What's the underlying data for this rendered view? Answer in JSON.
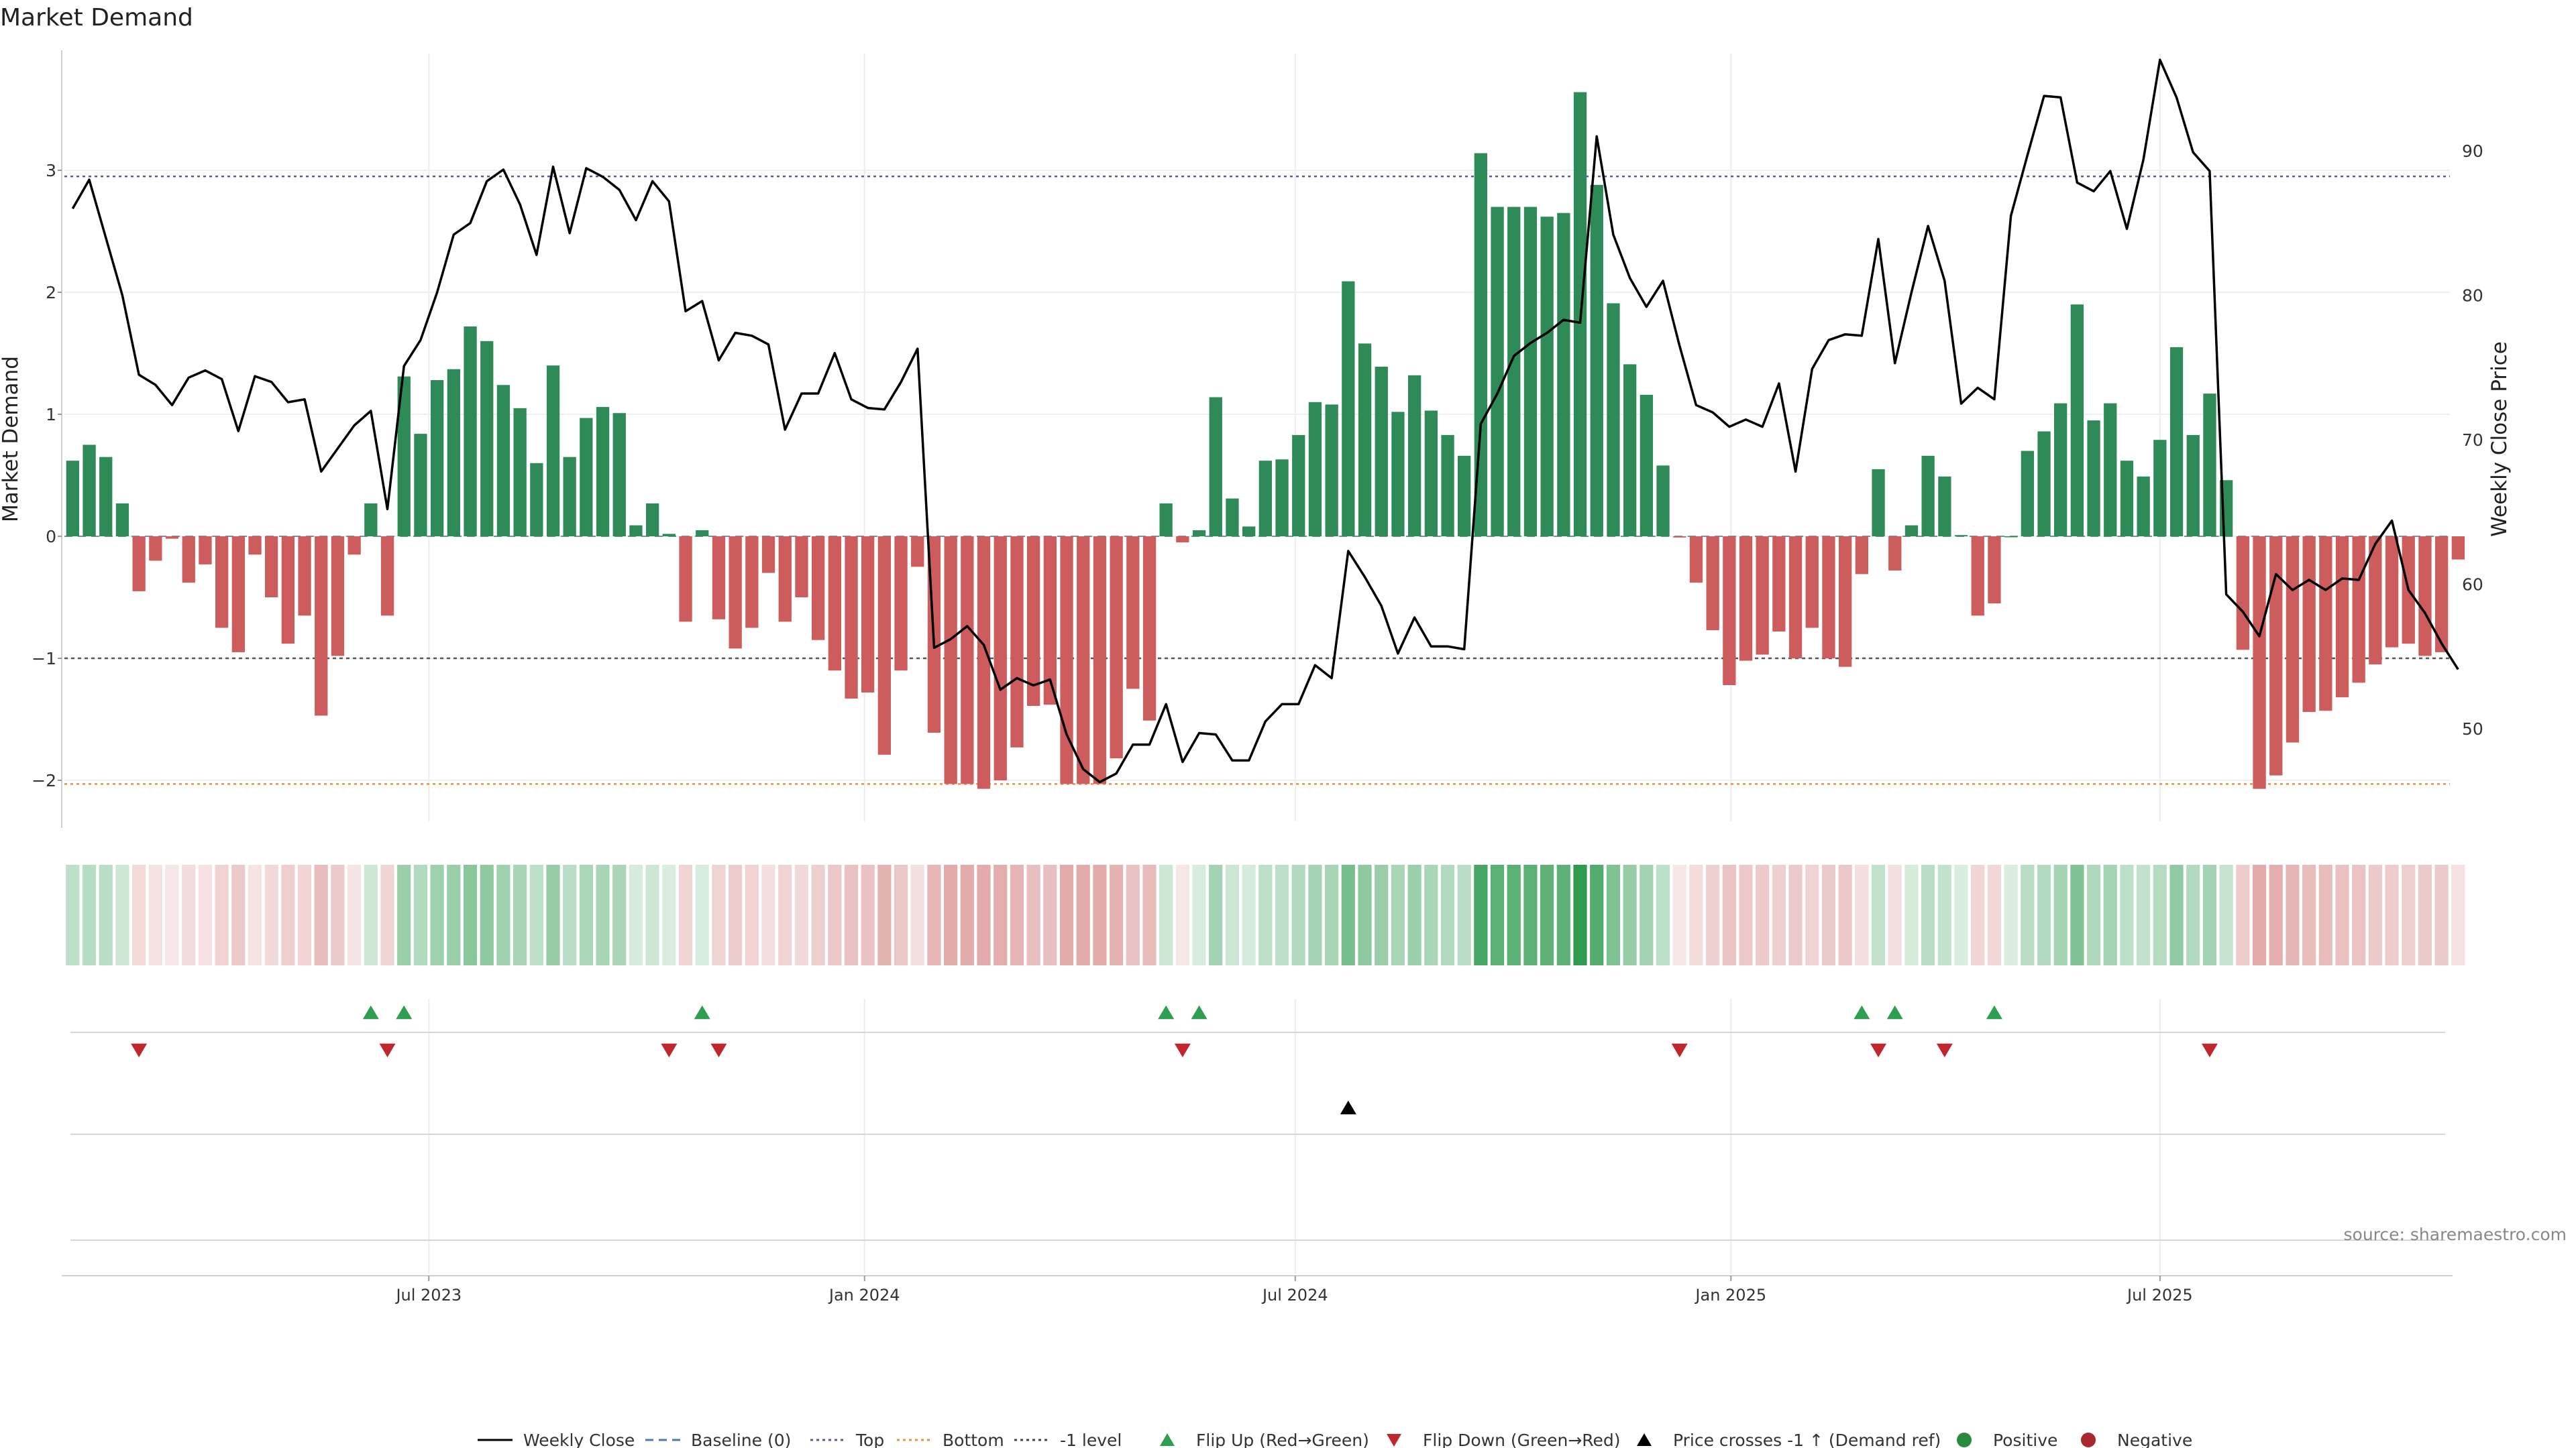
{
  "chart_data": {
    "type": "bar",
    "title": "Market Demand",
    "ylabel": "Market Demand",
    "y2label": "Weekly Close Price",
    "source": "source: sharemaestro.com",
    "ylim": [
      -2.4,
      3.95
    ],
    "y2lim": [
      44.5,
      97
    ],
    "yticks": [
      {
        "v": 3,
        "t": "3"
      },
      {
        "v": 2,
        "t": "2"
      },
      {
        "v": 1,
        "t": "1"
      },
      {
        "v": 0,
        "t": "0"
      },
      {
        "v": -1,
        "t": "−1"
      },
      {
        "v": -2,
        "t": "−2"
      }
    ],
    "y2ticks": [
      {
        "v": 90,
        "t": "90"
      },
      {
        "v": 80,
        "t": "80"
      },
      {
        "v": 70,
        "t": "70"
      },
      {
        "v": 60,
        "t": "60"
      },
      {
        "v": 50,
        "t": "50"
      }
    ],
    "xticks": [
      {
        "i": 21.5,
        "t": "Jul 2023"
      },
      {
        "i": 47.8,
        "t": "Jan 2024"
      },
      {
        "i": 73.8,
        "t": "Jul 2024"
      },
      {
        "i": 100.1,
        "t": "Jan 2025"
      },
      {
        "i": 126,
        "t": "Jul 2025"
      }
    ],
    "levels": {
      "top": 2.95,
      "bottom": -2.03,
      "minus_one": -1,
      "baseline": 0
    },
    "weeks": 144,
    "demand": [
      0.62,
      0.75,
      0.65,
      0.27,
      -0.45,
      -0.2,
      -0.02,
      -0.38,
      -0.23,
      -0.75,
      -0.95,
      -0.15,
      -0.5,
      -0.88,
      -0.65,
      -1.47,
      -0.98,
      -0.15,
      0.27,
      -0.65,
      1.31,
      0.84,
      1.28,
      1.37,
      1.72,
      1.6,
      1.24,
      1.05,
      0.6,
      1.4,
      0.65,
      0.97,
      1.06,
      1.01,
      0.09,
      0.27,
      0.02,
      -0.7,
      0.05,
      -0.68,
      -0.92,
      -0.75,
      -0.3,
      -0.7,
      -0.5,
      -0.85,
      -1.1,
      -1.33,
      -1.28,
      -1.79,
      -1.1,
      -0.25,
      -1.61,
      -2.03,
      -2.03,
      -2.07,
      -2.0,
      -1.73,
      -1.39,
      -1.38,
      -2.03,
      -2.03,
      -2.03,
      -1.82,
      -1.25,
      -1.51,
      0.27,
      -0.05,
      0.05,
      1.14,
      0.31,
      0.08,
      0.62,
      0.63,
      0.83,
      1.1,
      1.08,
      2.09,
      1.58,
      1.39,
      1.02,
      1.32,
      1.03,
      0.83,
      0.66,
      3.14,
      2.7,
      2.7,
      2.7,
      2.62,
      2.65,
      3.64,
      2.88,
      1.91,
      1.41,
      1.16,
      0.58,
      -0.01,
      -0.38,
      -0.77,
      -1.22,
      -1.02,
      -0.97,
      -0.78,
      -1.0,
      -0.75,
      -1.0,
      -1.07,
      -0.31,
      0.55,
      -0.28,
      0.09,
      0.66,
      0.49,
      0.01,
      -0.65,
      -0.55,
      0.0,
      0.7,
      0.86,
      1.09,
      1.9,
      0.95,
      1.09,
      0.62,
      0.49,
      0.79,
      1.55,
      0.83,
      1.17,
      0.46,
      -0.93,
      -2.07,
      -1.96,
      -1.69,
      -1.44,
      -1.43,
      -1.32,
      -1.2,
      -1.05,
      -0.91,
      -0.88,
      -0.98,
      -0.95,
      -0.19
    ],
    "close": [
      86,
      88,
      84,
      80,
      74.5,
      73.8,
      72.4,
      74.3,
      74.8,
      74.2,
      70.6,
      74.4,
      74,
      72.6,
      72.8,
      67.8,
      69.4,
      71,
      72,
      65.2,
      75.1,
      76.9,
      80.2,
      84.2,
      85,
      87.9,
      88.7,
      86.3,
      82.8,
      88.9,
      84.3,
      88.8,
      88.2,
      87.3,
      85.2,
      87.9,
      86.5,
      78.9,
      79.6,
      75.5,
      77.4,
      77.2,
      76.6,
      70.7,
      73.2,
      73.2,
      76,
      72.8,
      72.2,
      72.1,
      74,
      76.3,
      55.6,
      56.2,
      57.1,
      55.8,
      52.7,
      53.5,
      53,
      53.4,
      49.6,
      47.2,
      46.3,
      46.9,
      48.9,
      48.9,
      51.7,
      47.7,
      49.7,
      49.6,
      47.8,
      47.8,
      50.5,
      51.7,
      51.7,
      54.4,
      53.5,
      62.3,
      60.5,
      58.5,
      55.2,
      57.7,
      55.7,
      55.7,
      55.5,
      71.1,
      73.2,
      75.8,
      76.7,
      77.4,
      78.3,
      78.1,
      91,
      84.2,
      81.2,
      79.2,
      81,
      76.5,
      72.4,
      71.9,
      70.9,
      71.4,
      70.9,
      73.9,
      67.8,
      74.9,
      76.9,
      77.3,
      77.2,
      83.9,
      75.3,
      80.2,
      84.8,
      81,
      72.5,
      73.6,
      72.8,
      85.5,
      89.7,
      93.8,
      93.7,
      87.8,
      87.2,
      88.6,
      84.6,
      89.4,
      96.3,
      93.7,
      89.9,
      88.6,
      59.3,
      58.1,
      56.4,
      60.7,
      59.6,
      60.3,
      59.6,
      60.4,
      60.3,
      62.8,
      64.4,
      59.6,
      58,
      55.9,
      54.1
    ],
    "flip_up": [
      18,
      20,
      38,
      66,
      68,
      108,
      110,
      116
    ],
    "flip_down": [
      4,
      19,
      36,
      39,
      67,
      97,
      109,
      113,
      129
    ],
    "price_cross": [
      77
    ]
  },
  "legend": [
    {
      "label": "Weekly Close",
      "marker": "solid-line",
      "color": "#000000"
    },
    {
      "label": "Baseline (0)",
      "marker": "dashed-line",
      "color": "#4a7ab5"
    },
    {
      "label": "Top",
      "marker": "dotted-line",
      "color": "#5a55a8"
    },
    {
      "label": "Bottom",
      "marker": "dotted-line",
      "color": "#e8913a"
    },
    {
      "label": "-1 level",
      "marker": "dotted-line",
      "color": "#444444"
    },
    {
      "label": "Flip Up (Red→Green)",
      "marker": "triangle-up",
      "color": "#2e9e4f"
    },
    {
      "label": "Flip Down (Green→Red)",
      "marker": "triangle-down",
      "color": "#c0272d"
    },
    {
      "label": "Price crosses -1 ↑ (Demand ref)",
      "marker": "triangle-up",
      "color": "#000000"
    },
    {
      "label": "Positive",
      "marker": "circle",
      "color": "#2a8a3e"
    },
    {
      "label": "Negative",
      "marker": "circle",
      "color": "#a8262c"
    }
  ],
  "colors": {
    "positive": "#2e8b57",
    "negative": "#cd5c5c",
    "grid": "#ebebeb",
    "axis": "#cccccc"
  }
}
